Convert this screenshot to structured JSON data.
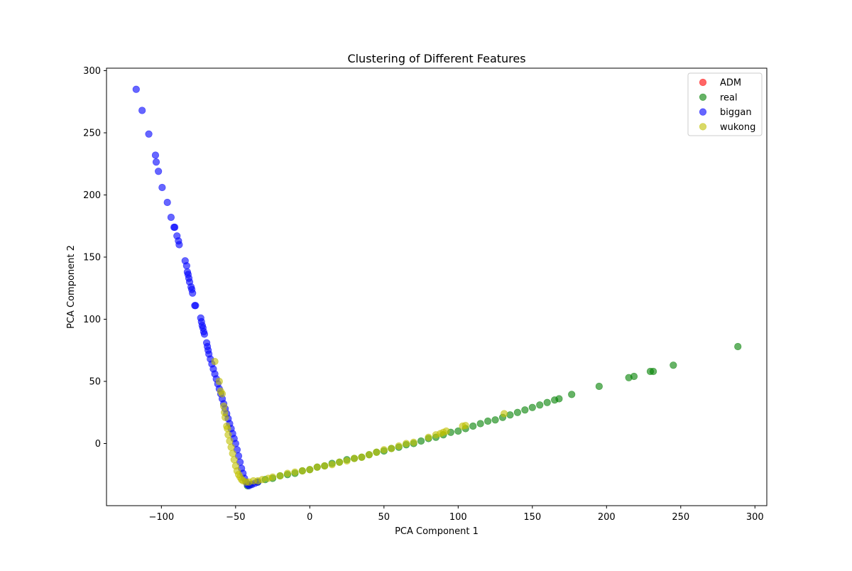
{
  "chart_data": {
    "type": "scatter",
    "title": "Clustering of Different Features",
    "xlabel": "PCA Component 1",
    "ylabel": "PCA Component 2",
    "xlim": [
      -137,
      308
    ],
    "ylim": [
      -50,
      302
    ],
    "xticks": [
      -100,
      -50,
      0,
      50,
      100,
      150,
      200,
      250,
      300
    ],
    "xtick_labels": [
      "−100",
      "−50",
      "0",
      "50",
      "100",
      "150",
      "200",
      "250",
      "300"
    ],
    "yticks": [
      0,
      50,
      100,
      150,
      200,
      250,
      300
    ],
    "ytick_labels": [
      "0",
      "50",
      "100",
      "150",
      "200",
      "250",
      "300"
    ],
    "grid": false,
    "legend_position": "top-right",
    "series": [
      {
        "name": "ADM",
        "color": "#ff0000",
        "alpha": 0.6,
        "points": []
      },
      {
        "name": "real",
        "color": "#008000",
        "alpha": 0.6,
        "points": [
          [
            -42,
            -34
          ],
          [
            -40,
            -33
          ],
          [
            -35,
            -31
          ],
          [
            -30,
            -29
          ],
          [
            -25,
            -28
          ],
          [
            -20,
            -26
          ],
          [
            -15,
            -25
          ],
          [
            -10,
            -24
          ],
          [
            -5,
            -22
          ],
          [
            0,
            -21
          ],
          [
            5,
            -19
          ],
          [
            10,
            -18
          ],
          [
            15,
            -16
          ],
          [
            20,
            -15
          ],
          [
            25,
            -13
          ],
          [
            30,
            -12
          ],
          [
            35,
            -11
          ],
          [
            40,
            -9
          ],
          [
            45,
            -7
          ],
          [
            50,
            -6
          ],
          [
            55,
            -4
          ],
          [
            60,
            -3
          ],
          [
            65,
            -1
          ],
          [
            70,
            0
          ],
          [
            75,
            2
          ],
          [
            80,
            4
          ],
          [
            85,
            5
          ],
          [
            90,
            7
          ],
          [
            95,
            9
          ],
          [
            100,
            10
          ],
          [
            105,
            12
          ],
          [
            110,
            14
          ],
          [
            115,
            16
          ],
          [
            120,
            18
          ],
          [
            125,
            19
          ],
          [
            130,
            21
          ],
          [
            135,
            23
          ],
          [
            140,
            25
          ],
          [
            145,
            27
          ],
          [
            150,
            29
          ],
          [
            155,
            31
          ],
          [
            160,
            33
          ],
          [
            165,
            35
          ],
          [
            168,
            36
          ],
          [
            176.5,
            39.5
          ],
          [
            195,
            46
          ],
          [
            215,
            53
          ],
          [
            218.5,
            54
          ],
          [
            229.5,
            58
          ],
          [
            231.5,
            58
          ],
          [
            245,
            63
          ],
          [
            288.5,
            78
          ]
        ]
      },
      {
        "name": "biggan",
        "color": "#0000ff",
        "alpha": 0.6,
        "points": [
          [
            -117,
            285
          ],
          [
            -113,
            268
          ],
          [
            -108.5,
            249
          ],
          [
            -104,
            232
          ],
          [
            -103.5,
            226.5
          ],
          [
            -102,
            219
          ],
          [
            -99.5,
            206
          ],
          [
            -96,
            194
          ],
          [
            -93.5,
            182
          ],
          [
            -91.5,
            174
          ],
          [
            -91,
            174
          ],
          [
            -89.5,
            167
          ],
          [
            -88.5,
            163
          ],
          [
            -88,
            160
          ],
          [
            -84,
            147
          ],
          [
            -83,
            143
          ],
          [
            -82.5,
            138
          ],
          [
            -82,
            136
          ],
          [
            -81.5,
            133
          ],
          [
            -81,
            130
          ],
          [
            -80,
            126
          ],
          [
            -79.5,
            124
          ],
          [
            -79,
            121
          ],
          [
            -77.5,
            111
          ],
          [
            -77,
            111
          ],
          [
            -73.5,
            101
          ],
          [
            -73,
            98
          ],
          [
            -72.5,
            95
          ],
          [
            -72,
            93
          ],
          [
            -71.5,
            90
          ],
          [
            -71,
            88
          ],
          [
            -69.5,
            81
          ],
          [
            -69,
            78
          ],
          [
            -68.5,
            75
          ],
          [
            -68,
            72
          ],
          [
            -67,
            68
          ],
          [
            -66,
            64
          ],
          [
            -65,
            60
          ],
          [
            -64,
            56
          ],
          [
            -63,
            52
          ],
          [
            -62,
            48
          ],
          [
            -61,
            44
          ],
          [
            -60,
            40
          ],
          [
            -59,
            36
          ],
          [
            -58,
            32
          ],
          [
            -57,
            28
          ],
          [
            -56,
            24
          ],
          [
            -55,
            20
          ],
          [
            -54,
            16
          ],
          [
            -53,
            12
          ],
          [
            -52,
            8
          ],
          [
            -51,
            4
          ],
          [
            -50,
            0
          ],
          [
            -49,
            -5
          ],
          [
            -48,
            -10
          ],
          [
            -47,
            -15
          ],
          [
            -46,
            -20
          ],
          [
            -45,
            -24
          ],
          [
            -44,
            -28
          ],
          [
            -43,
            -31
          ],
          [
            -42,
            -33
          ],
          [
            -41,
            -34
          ],
          [
            -39,
            -33
          ],
          [
            -37,
            -32
          ],
          [
            -35,
            -31
          ]
        ]
      },
      {
        "name": "wukong",
        "color": "#bfbf00",
        "alpha": 0.6,
        "points": [
          [
            -64,
            66
          ],
          [
            -61,
            50
          ],
          [
            -60,
            42
          ],
          [
            -59,
            40
          ],
          [
            -58,
            30
          ],
          [
            -57.5,
            25
          ],
          [
            -57,
            21
          ],
          [
            -56,
            14
          ],
          [
            -55.5,
            12
          ],
          [
            -55,
            7
          ],
          [
            -54,
            2
          ],
          [
            -53,
            -3
          ],
          [
            -52,
            -8
          ],
          [
            -51,
            -13
          ],
          [
            -50,
            -18
          ],
          [
            -49,
            -22
          ],
          [
            -48,
            -25
          ],
          [
            -47,
            -27
          ],
          [
            -46,
            -29
          ],
          [
            -45,
            -30
          ],
          [
            -43,
            -31
          ],
          [
            -41,
            -31
          ],
          [
            -38,
            -30
          ],
          [
            -35,
            -30
          ],
          [
            -32,
            -29
          ],
          [
            -28,
            -28
          ],
          [
            -25,
            -27
          ],
          [
            -20,
            -26
          ],
          [
            -15,
            -24
          ],
          [
            -10,
            -23
          ],
          [
            -5,
            -22
          ],
          [
            0,
            -21
          ],
          [
            5,
            -19
          ],
          [
            10,
            -18
          ],
          [
            15,
            -17
          ],
          [
            20,
            -15
          ],
          [
            25,
            -14
          ],
          [
            30,
            -12
          ],
          [
            35,
            -11
          ],
          [
            40,
            -9
          ],
          [
            45,
            -7
          ],
          [
            50,
            -5
          ],
          [
            55,
            -4
          ],
          [
            60,
            -2
          ],
          [
            65,
            0
          ],
          [
            70,
            1
          ],
          [
            80,
            5
          ],
          [
            85,
            7
          ],
          [
            88,
            8
          ],
          [
            90,
            9
          ],
          [
            92,
            10
          ],
          [
            103,
            14
          ],
          [
            105,
            14.5
          ],
          [
            131,
            24
          ]
        ]
      }
    ]
  }
}
